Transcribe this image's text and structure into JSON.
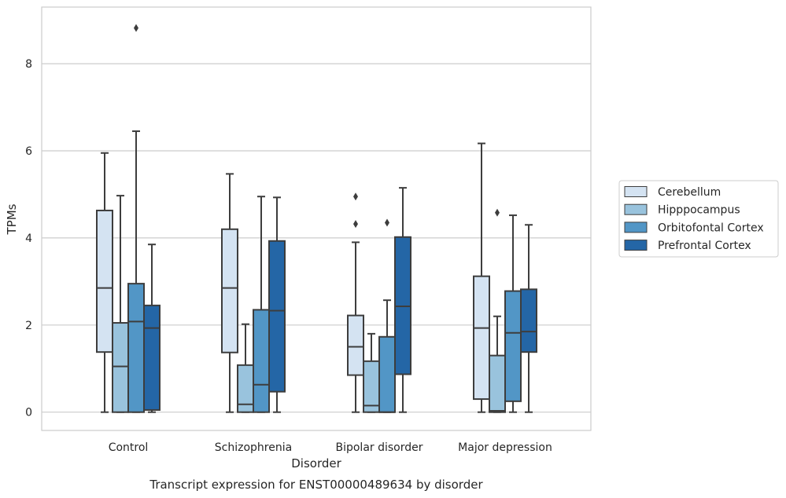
{
  "chart_data": {
    "type": "box",
    "caption": "Transcript expression for ENST00000489634 by disorder",
    "xlabel": "Disorder",
    "ylabel": "TPMs",
    "ylim": [
      -0.42,
      9.3
    ],
    "yticks": [
      0,
      2,
      4,
      6,
      8
    ],
    "grid": "horizontal",
    "legend_position": "right",
    "categories": [
      "Control",
      "Schizophrenia",
      "Bipolar disorder",
      "Major depression"
    ],
    "series": [
      {
        "name": "Cerebellum",
        "color": "#d4e3f2",
        "boxes": [
          {
            "q1": 1.38,
            "median": 2.85,
            "q3": 4.63,
            "whisker_low": 0.0,
            "whisker_high": 5.95,
            "outliers": []
          },
          {
            "q1": 1.37,
            "median": 2.85,
            "q3": 4.2,
            "whisker_low": 0.0,
            "whisker_high": 5.47,
            "outliers": []
          },
          {
            "q1": 0.85,
            "median": 1.5,
            "q3": 2.22,
            "whisker_low": 0.0,
            "whisker_high": 3.9,
            "outliers": [
              4.32,
              4.95
            ]
          },
          {
            "q1": 0.3,
            "median": 1.93,
            "q3": 3.12,
            "whisker_low": 0.0,
            "whisker_high": 6.17,
            "outliers": []
          }
        ]
      },
      {
        "name": "Hipppocampus",
        "color": "#99c3dd",
        "boxes": [
          {
            "q1": 0.0,
            "median": 1.05,
            "q3": 2.05,
            "whisker_low": 0.0,
            "whisker_high": 4.97,
            "outliers": []
          },
          {
            "q1": 0.0,
            "median": 0.18,
            "q3": 1.08,
            "whisker_low": 0.0,
            "whisker_high": 2.02,
            "outliers": []
          },
          {
            "q1": 0.0,
            "median": 0.15,
            "q3": 1.17,
            "whisker_low": 0.0,
            "whisker_high": 1.8,
            "outliers": []
          },
          {
            "q1": 0.0,
            "median": 0.03,
            "q3": 1.3,
            "whisker_low": 0.0,
            "whisker_high": 2.2,
            "outliers": [
              4.58
            ]
          }
        ]
      },
      {
        "name": "Orbitofontal Cortex",
        "color": "#5296c6",
        "boxes": [
          {
            "q1": 0.0,
            "median": 2.08,
            "q3": 2.95,
            "whisker_low": 0.0,
            "whisker_high": 6.45,
            "outliers": [
              8.82
            ]
          },
          {
            "q1": 0.0,
            "median": 0.63,
            "q3": 2.35,
            "whisker_low": 0.0,
            "whisker_high": 4.95,
            "outliers": []
          },
          {
            "q1": 0.0,
            "median": 0.0,
            "q3": 1.73,
            "whisker_low": 0.0,
            "whisker_high": 2.57,
            "outliers": [
              4.35
            ]
          },
          {
            "q1": 0.25,
            "median": 1.82,
            "q3": 2.78,
            "whisker_low": 0.0,
            "whisker_high": 4.52,
            "outliers": []
          }
        ]
      },
      {
        "name": "Prefrontal Cortex",
        "color": "#2466a6",
        "boxes": [
          {
            "q1": 0.05,
            "median": 1.93,
            "q3": 2.45,
            "whisker_low": 0.0,
            "whisker_high": 3.85,
            "outliers": []
          },
          {
            "q1": 0.47,
            "median": 2.33,
            "q3": 3.93,
            "whisker_low": 0.0,
            "whisker_high": 4.93,
            "outliers": []
          },
          {
            "q1": 0.87,
            "median": 2.43,
            "q3": 4.02,
            "whisker_low": 0.0,
            "whisker_high": 5.15,
            "outliers": []
          },
          {
            "q1": 1.38,
            "median": 1.85,
            "q3": 2.82,
            "whisker_low": 0.0,
            "whisker_high": 4.3,
            "outliers": []
          }
        ]
      }
    ]
  }
}
